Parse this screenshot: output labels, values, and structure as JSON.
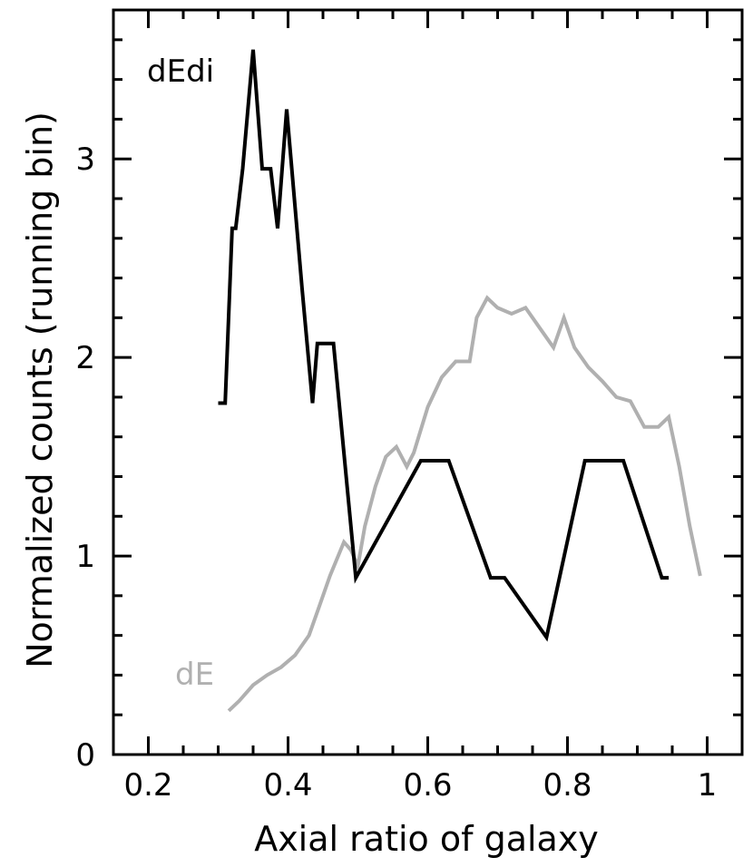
{
  "chart_data": {
    "type": "line",
    "xlabel": "Axial ratio of galaxy",
    "ylabel": "Normalized counts (running bin)",
    "xlim": [
      0.15,
      1.05
    ],
    "ylim": [
      0,
      3.75
    ],
    "x_ticks": [
      0.2,
      0.4,
      0.6,
      0.8,
      1
    ],
    "x_tick_labels": [
      "0.2",
      "0.4",
      "0.6",
      "0.8",
      "1"
    ],
    "y_ticks": [
      0,
      1,
      2,
      3
    ],
    "y_tick_labels": [
      "0",
      "1",
      "2",
      "3"
    ],
    "grid": false,
    "series": [
      {
        "name": "dEdi",
        "color": "#000000",
        "points": [
          [
            0.3,
            1.77
          ],
          [
            0.31,
            1.77
          ],
          [
            0.32,
            2.65
          ],
          [
            0.325,
            2.65
          ],
          [
            0.335,
            2.95
          ],
          [
            0.35,
            3.55
          ],
          [
            0.363,
            2.95
          ],
          [
            0.375,
            2.95
          ],
          [
            0.385,
            2.65
          ],
          [
            0.398,
            3.25
          ],
          [
            0.42,
            2.35
          ],
          [
            0.435,
            1.77
          ],
          [
            0.442,
            2.07
          ],
          [
            0.465,
            2.07
          ],
          [
            0.497,
            0.89
          ],
          [
            0.59,
            1.48
          ],
          [
            0.63,
            1.48
          ],
          [
            0.69,
            0.89
          ],
          [
            0.71,
            0.89
          ],
          [
            0.77,
            0.59
          ],
          [
            0.825,
            1.48
          ],
          [
            0.88,
            1.48
          ],
          [
            0.935,
            0.89
          ],
          [
            0.945,
            0.89
          ]
        ]
      },
      {
        "name": "dE",
        "color": "#b0b0b0",
        "points": [
          [
            0.315,
            0.22
          ],
          [
            0.33,
            0.27
          ],
          [
            0.35,
            0.35
          ],
          [
            0.37,
            0.4
          ],
          [
            0.39,
            0.44
          ],
          [
            0.41,
            0.5
          ],
          [
            0.43,
            0.6
          ],
          [
            0.445,
            0.75
          ],
          [
            0.46,
            0.9
          ],
          [
            0.48,
            1.07
          ],
          [
            0.49,
            1.03
          ],
          [
            0.5,
            0.95
          ],
          [
            0.51,
            1.15
          ],
          [
            0.525,
            1.35
          ],
          [
            0.54,
            1.5
          ],
          [
            0.555,
            1.55
          ],
          [
            0.57,
            1.45
          ],
          [
            0.58,
            1.52
          ],
          [
            0.6,
            1.75
          ],
          [
            0.62,
            1.9
          ],
          [
            0.64,
            1.98
          ],
          [
            0.66,
            1.98
          ],
          [
            0.67,
            2.2
          ],
          [
            0.685,
            2.3
          ],
          [
            0.7,
            2.25
          ],
          [
            0.72,
            2.22
          ],
          [
            0.74,
            2.25
          ],
          [
            0.76,
            2.15
          ],
          [
            0.78,
            2.05
          ],
          [
            0.795,
            2.2
          ],
          [
            0.81,
            2.05
          ],
          [
            0.83,
            1.95
          ],
          [
            0.85,
            1.88
          ],
          [
            0.87,
            1.8
          ],
          [
            0.89,
            1.78
          ],
          [
            0.91,
            1.65
          ],
          [
            0.93,
            1.65
          ],
          [
            0.945,
            1.7
          ],
          [
            0.96,
            1.45
          ],
          [
            0.975,
            1.15
          ],
          [
            0.99,
            0.9
          ]
        ]
      }
    ],
    "annotations": [
      {
        "text": "dEdi",
        "series": "dEdi"
      },
      {
        "text": "dE",
        "series": "dE"
      }
    ]
  }
}
